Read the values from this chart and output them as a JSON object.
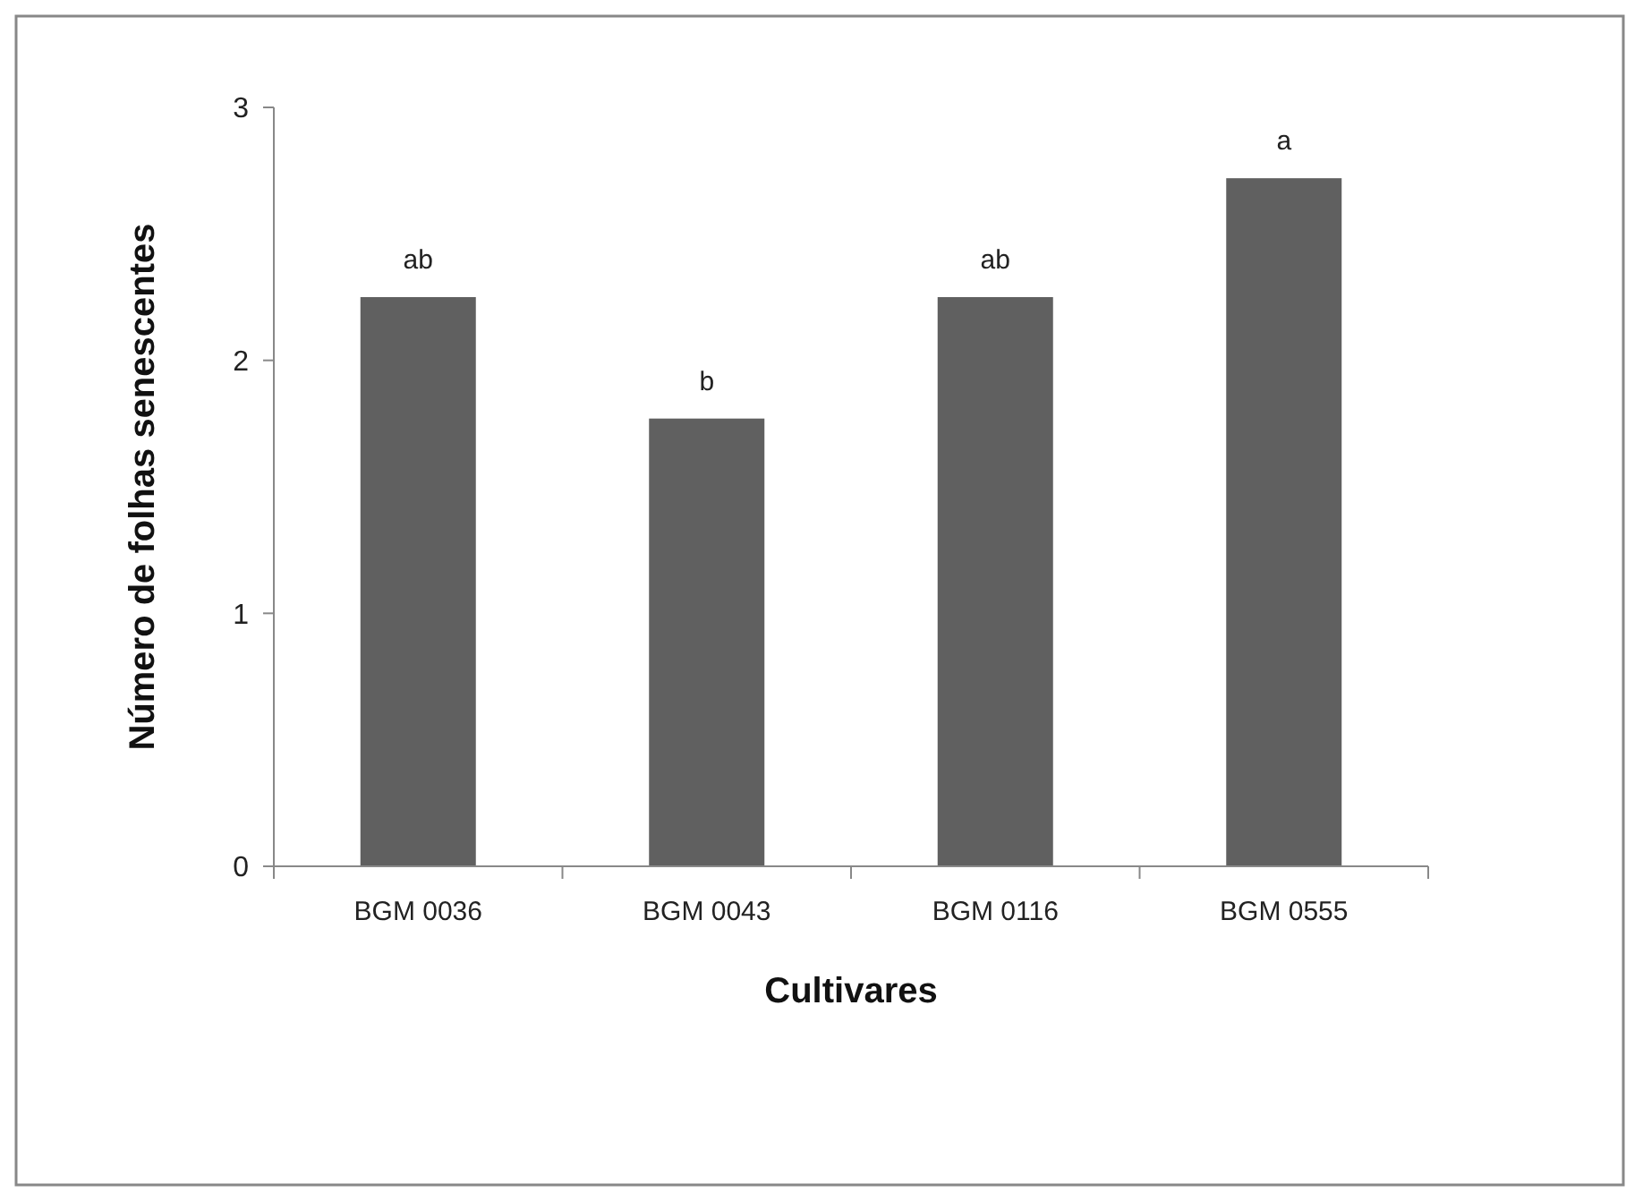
{
  "chart_data": {
    "type": "bar",
    "xlabel": "Cultivares",
    "ylabel": "Número de folhas senescentes",
    "categories": [
      "BGM 0036",
      "BGM 0043",
      "BGM 0116",
      "BGM 0555"
    ],
    "values": [
      2.25,
      1.77,
      2.25,
      2.72
    ],
    "color": "#606060",
    "ylim": [
      0,
      3
    ],
    "yticks": [
      0,
      1,
      2,
      3
    ],
    "grid": false,
    "annotations": [
      {
        "text": "ab",
        "x": "BGM 0036",
        "y": 2.25
      },
      {
        "text": "b",
        "x": "BGM 0043",
        "y": 1.77
      },
      {
        "text": "ab",
        "x": "BGM 0116",
        "y": 2.25
      },
      {
        "text": "a",
        "x": "BGM 0555",
        "y": 2.72
      }
    ]
  }
}
